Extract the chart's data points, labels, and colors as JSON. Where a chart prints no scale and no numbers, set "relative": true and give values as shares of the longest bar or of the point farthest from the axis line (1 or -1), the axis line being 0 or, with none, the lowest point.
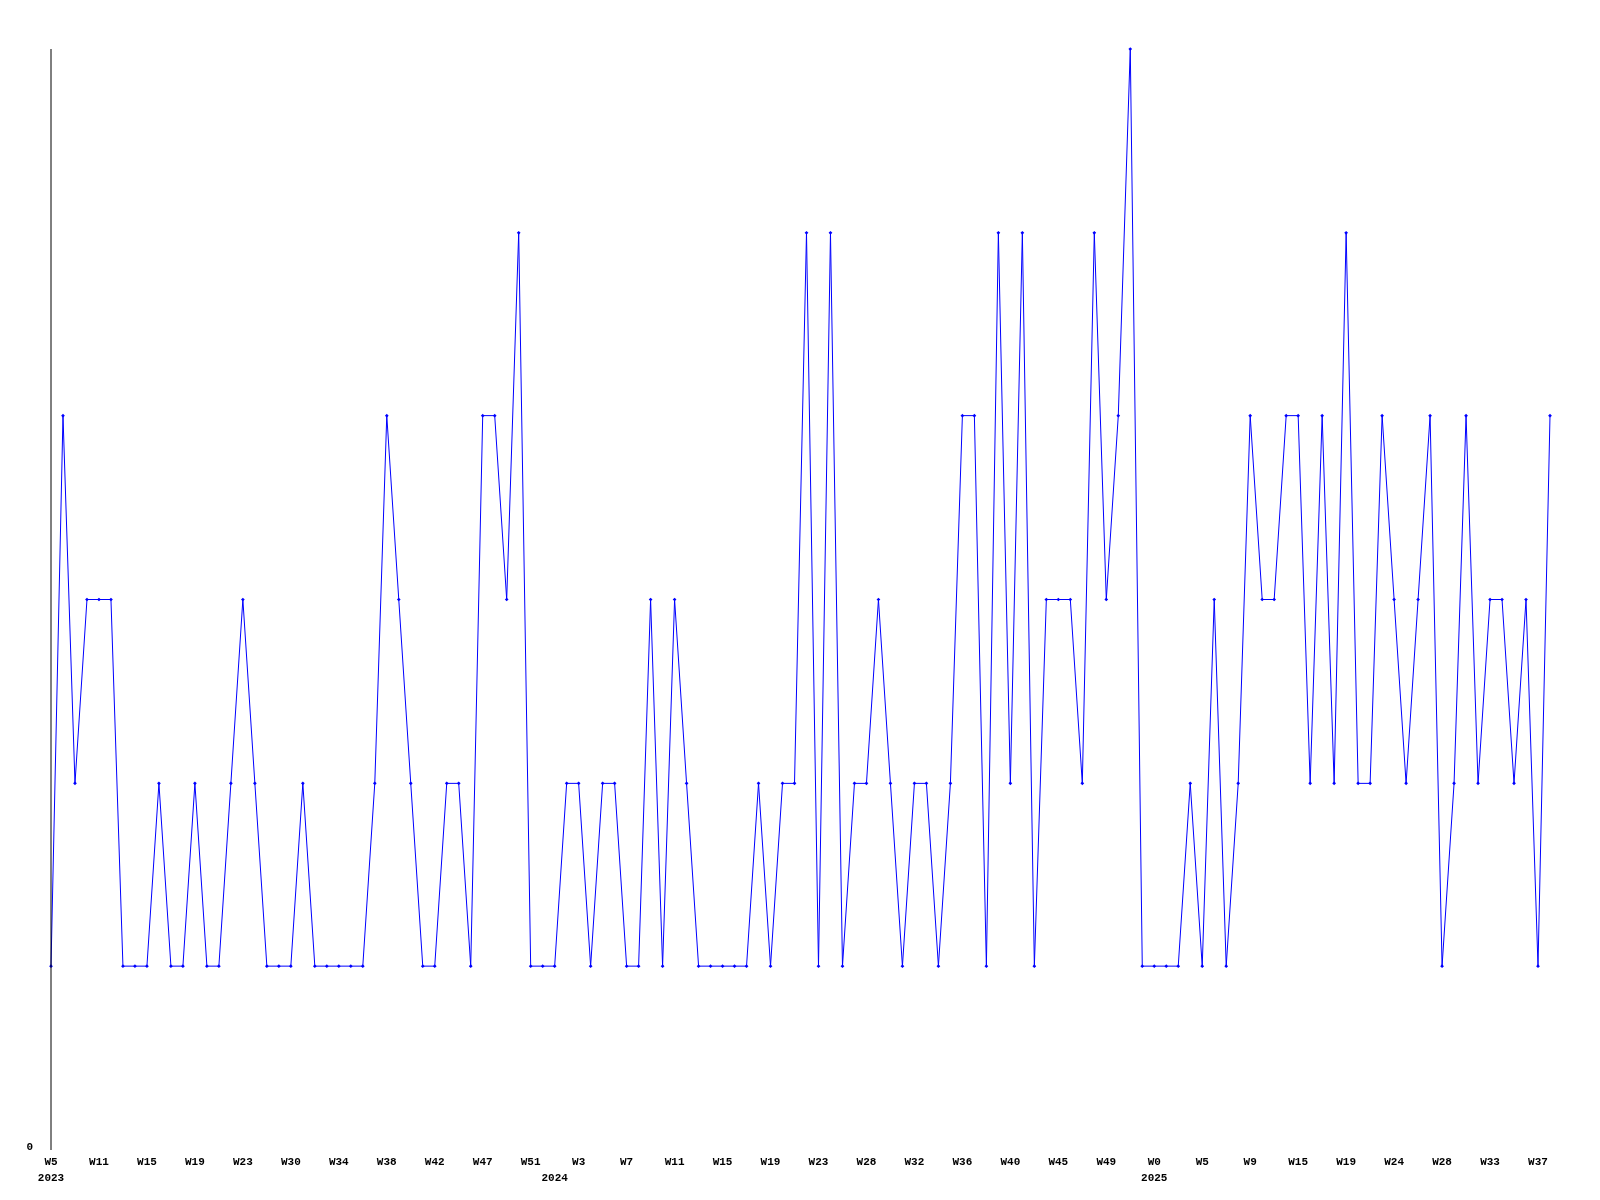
{
  "chart_data": {
    "type": "line",
    "relative": true,
    "marker": "diamond",
    "line_style": "solid",
    "categories": [
      "W5\n2023",
      null,
      null,
      null,
      "W11",
      null,
      null,
      null,
      "W15",
      null,
      null,
      null,
      "W19",
      null,
      null,
      null,
      "W23",
      null,
      null,
      null,
      "W30",
      null,
      null,
      null,
      "W34",
      null,
      null,
      null,
      "W38",
      null,
      null,
      null,
      "W42",
      null,
      null,
      null,
      "W47",
      null,
      null,
      null,
      "W51",
      null,
      "\n2024",
      null,
      "W3",
      null,
      null,
      null,
      "W7",
      null,
      null,
      null,
      "W11",
      null,
      null,
      null,
      "W15",
      null,
      null,
      null,
      "W19",
      null,
      null,
      null,
      "W23",
      null,
      null,
      null,
      "W28",
      null,
      null,
      null,
      "W32",
      null,
      null,
      null,
      "W36",
      null,
      null,
      null,
      "W40",
      null,
      null,
      null,
      "W45",
      null,
      null,
      null,
      "W49",
      null,
      null,
      null,
      "W0\n2025",
      null,
      null,
      null,
      "W5",
      null,
      null,
      null,
      "W9",
      null,
      null,
      null,
      "W15",
      null,
      null,
      null,
      "W19",
      null,
      null,
      null,
      "W24",
      null,
      null,
      null,
      "W28",
      null,
      null,
      null,
      "W33",
      null,
      null,
      null,
      "W37",
      null
    ],
    "series": [
      {
        "color": "#0000ff",
        "values": [
          0.167,
          0.667,
          0.333,
          0.5,
          0.5,
          0.5,
          0.167,
          0.167,
          0.167,
          0.333,
          0.167,
          0.167,
          0.333,
          0.167,
          0.167,
          0.333,
          0.5,
          0.333,
          0.167,
          0.167,
          0.167,
          0.333,
          0.167,
          0.167,
          0.167,
          0.167,
          0.167,
          0.333,
          0.667,
          0.5,
          0.333,
          0.167,
          0.167,
          0.333,
          0.333,
          0.167,
          0.667,
          0.667,
          0.5,
          0.833,
          0.167,
          0.167,
          0.167,
          0.333,
          0.333,
          0.167,
          0.333,
          0.333,
          0.167,
          0.167,
          0.5,
          0.167,
          0.5,
          0.333,
          0.167,
          0.167,
          0.167,
          0.167,
          0.167,
          0.333,
          0.167,
          0.333,
          0.333,
          0.833,
          0.167,
          0.833,
          0.167,
          0.333,
          0.333,
          0.5,
          0.333,
          0.167,
          0.333,
          0.333,
          0.167,
          0.333,
          0.667,
          0.667,
          0.167,
          0.833,
          0.333,
          0.833,
          0.167,
          0.5,
          0.5,
          0.5,
          0.333,
          0.833,
          0.5,
          0.667,
          1,
          0.167,
          0.167,
          0.167,
          0.167,
          0.333,
          0.167,
          0.5,
          0.167,
          0.333,
          0.667,
          0.5,
          0.5,
          0.667,
          0.667,
          0.333,
          0.667,
          0.333,
          0.833,
          0.333,
          0.333,
          0.667,
          0.5,
          0.333,
          0.5,
          0.667,
          0.167,
          0.333,
          0.667,
          0.333,
          0.5,
          0.5,
          0.333,
          0.5,
          0.167,
          0.667
        ]
      }
    ],
    "annotations": [
      "0"
    ]
  }
}
